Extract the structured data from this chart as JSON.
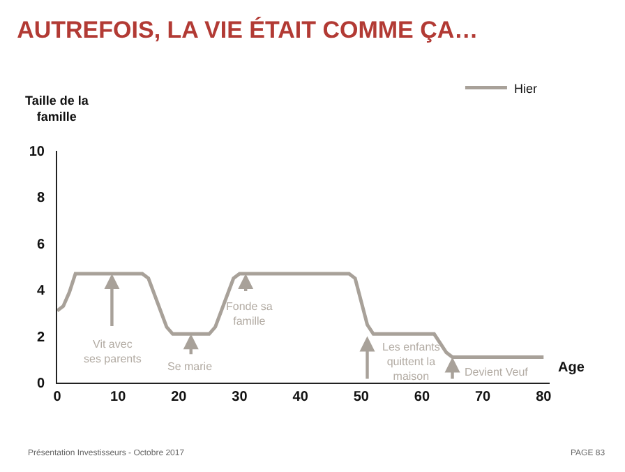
{
  "chart_data": {
    "type": "line",
    "title": "AUTREFOIS, LA VIE ÉTAIT COMME ÇA…",
    "xlabel": "Age",
    "ylabel": "Taille de la\nfamille",
    "series": [
      {
        "name": "Hier",
        "color": "#a8a199",
        "x": [
          0,
          1,
          2,
          3,
          14,
          15,
          18,
          19,
          25,
          26,
          29,
          30,
          48,
          49,
          51,
          52,
          62,
          64,
          65,
          80
        ],
        "values": [
          3.1,
          3.3,
          3.9,
          4.7,
          4.7,
          4.5,
          2.4,
          2.1,
          2.1,
          2.4,
          4.5,
          4.7,
          4.7,
          4.5,
          2.5,
          2.1,
          2.1,
          1.3,
          1.1,
          1.1
        ]
      }
    ],
    "xlim": [
      0,
      81
    ],
    "xticks": [
      0,
      10,
      20,
      30,
      40,
      50,
      60,
      70,
      80
    ],
    "ylim": [
      0,
      10
    ],
    "yticks": [
      0,
      2,
      4,
      6,
      8,
      10
    ],
    "grid": false,
    "legend": "top right",
    "marker": "none",
    "line_style": "solid",
    "annotations": [
      {
        "text": "Vit avec\nses parents",
        "x": 9,
        "y": 4.7
      },
      {
        "text": "Se marie",
        "x": 22,
        "y": 2.1
      },
      {
        "text": "Fonde sa\nfamille",
        "x": 31,
        "y": 4.7
      },
      {
        "text": "Les enfants\nquittent la\nmaison",
        "x": 51,
        "y": 2.0
      },
      {
        "text": "Devient Veuf",
        "x": 65,
        "y": 1.1
      },
      "Présentation Investisseurs - Octobre 2017",
      "PAGE 83"
    ]
  }
}
